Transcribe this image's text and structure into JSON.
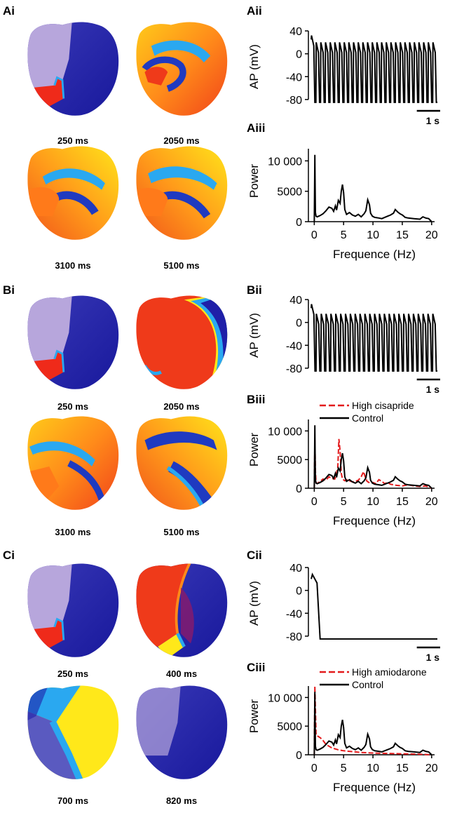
{
  "panels": {
    "A": {
      "labels": {
        "maps": "Ai",
        "ap": "Aii",
        "power": "Aiii"
      },
      "times": [
        "250 ms",
        "2050 ms",
        "3100 ms",
        "5100 ms"
      ]
    },
    "B": {
      "labels": {
        "maps": "Bi",
        "ap": "Bii",
        "power": "Biii"
      },
      "times": [
        "250 ms",
        "2050 ms",
        "3100 ms",
        "5100 ms"
      ]
    },
    "C": {
      "labels": {
        "maps": "Ci",
        "ap": "Cii",
        "power": "Ciii"
      },
      "times": [
        "250 ms",
        "400 ms",
        "700 ms",
        "820 ms"
      ]
    }
  },
  "colors": {
    "map_blue": "#1f1fa8",
    "map_red": "#ef2a1a",
    "map_orange": "#ff8a1a",
    "map_yellow": "#ffe81a",
    "map_cyan": "#2aa8f0",
    "map_purple": "#b7a6dc",
    "control": "#000000",
    "drug": "#e31a1c"
  },
  "chart_data": [
    {
      "id": "Aii",
      "type": "line",
      "ylabel": "AP (mV)",
      "yticks": [
        40,
        0,
        -40,
        -80
      ],
      "ylim": [
        -90,
        45
      ],
      "scalebar": "1 s",
      "series": [
        {
          "kind": "ap_train",
          "beats": 27,
          "peak": 20,
          "first_peak": 32,
          "rest": -85,
          "duration_s": 5.4
        }
      ]
    },
    {
      "id": "Aiii",
      "type": "line",
      "ylabel": "Power",
      "xlabel": "Frequence (Hz)",
      "xticks": [
        0,
        5,
        10,
        15,
        20
      ],
      "yticks": [
        0,
        5000,
        "10 000"
      ],
      "xlim": [
        -1,
        20.5
      ],
      "ylim": [
        0,
        12000
      ],
      "legend": [],
      "series": [
        {
          "style": "control",
          "x": [
            0,
            0.1,
            0.15,
            0.2,
            0.3,
            0.5,
            1,
            1.5,
            2,
            2.5,
            3,
            3.3,
            3.6,
            3.8,
            4.1,
            4.4,
            4.6,
            4.8,
            5.0,
            5.2,
            5.5,
            6,
            6.5,
            7,
            7.5,
            8,
            8.5,
            8.8,
            9.1,
            9.4,
            9.6,
            9.9,
            10.3,
            11,
            11.5,
            12,
            12.5,
            13,
            13.5,
            13.8,
            14.2,
            14.6,
            15,
            15.5,
            16,
            17,
            18,
            18.5,
            19,
            19.5,
            20
          ],
          "y": [
            0,
            11000,
            6000,
            1500,
            900,
            800,
            1000,
            1300,
            1800,
            2400,
            2200,
            1700,
            2600,
            1900,
            3500,
            3000,
            5000,
            6100,
            4800,
            2000,
            1200,
            1500,
            1100,
            900,
            1200,
            800,
            1300,
            1800,
            3600,
            2800,
            1400,
            900,
            700,
            600,
            500,
            700,
            900,
            1100,
            1400,
            2000,
            1600,
            1300,
            1100,
            700,
            600,
            500,
            400,
            800,
            600,
            500,
            0
          ]
        }
      ]
    },
    {
      "id": "Bii",
      "type": "line",
      "ylabel": "AP (mV)",
      "yticks": [
        40,
        0,
        -40,
        -80
      ],
      "ylim": [
        -90,
        45
      ],
      "scalebar": "1 s",
      "series": [
        {
          "kind": "ap_train",
          "beats": 26,
          "peak": 15,
          "first_peak": 32,
          "rest": -85,
          "duration_s": 5.4
        }
      ]
    },
    {
      "id": "Biii",
      "type": "line",
      "ylabel": "Power",
      "xlabel": "Frequence (Hz)",
      "xticks": [
        0,
        5,
        10,
        15,
        20
      ],
      "yticks": [
        0,
        5000,
        "10 000"
      ],
      "xlim": [
        -1,
        20.5
      ],
      "ylim": [
        0,
        12000
      ],
      "legend": [
        "High cisapride",
        "Control"
      ],
      "series": [
        {
          "name": "High cisapride",
          "style": "drug",
          "x": [
            0,
            0.1,
            0.2,
            0.3,
            0.5,
            1,
            1.5,
            2,
            2.5,
            3,
            3.5,
            4,
            4.2,
            4.4,
            4.6,
            4.8,
            5.2,
            5.6,
            6,
            6.5,
            7,
            7.5,
            8,
            8.4,
            8.7,
            9,
            9.5,
            10,
            10.5,
            11,
            11.5,
            12,
            12.5,
            13,
            14,
            15,
            16,
            17,
            18,
            19,
            20
          ],
          "y": [
            0,
            8500,
            3000,
            1000,
            800,
            1200,
            1600,
            1400,
            2000,
            1700,
            1600,
            3500,
            8600,
            6500,
            2600,
            1600,
            1300,
            1500,
            1300,
            1100,
            1200,
            1400,
            2000,
            2900,
            1900,
            1200,
            900,
            1000,
            800,
            1500,
            1200,
            800,
            1000,
            700,
            500,
            400,
            600,
            400,
            300,
            400,
            0
          ]
        },
        {
          "name": "Control",
          "style": "control",
          "x": [
            0,
            0.1,
            0.15,
            0.2,
            0.3,
            0.5,
            1,
            1.5,
            2,
            2.5,
            3,
            3.3,
            3.6,
            3.8,
            4.1,
            4.4,
            4.6,
            4.8,
            5.0,
            5.2,
            5.5,
            6,
            6.5,
            7,
            7.5,
            8,
            8.5,
            8.8,
            9.1,
            9.4,
            9.6,
            9.9,
            10.3,
            11,
            11.5,
            12,
            12.5,
            13,
            13.5,
            13.8,
            14.2,
            14.6,
            15,
            15.5,
            16,
            17,
            18,
            18.5,
            19,
            19.5,
            20
          ],
          "y": [
            0,
            11000,
            6000,
            1500,
            900,
            800,
            1000,
            1300,
            1800,
            2400,
            2200,
            1700,
            2600,
            1900,
            3500,
            3000,
            5000,
            6100,
            4800,
            2000,
            1200,
            1500,
            1100,
            900,
            1200,
            800,
            1300,
            1800,
            3600,
            2800,
            1400,
            900,
            700,
            600,
            500,
            700,
            900,
            1100,
            1400,
            2000,
            1600,
            1300,
            1100,
            700,
            600,
            500,
            400,
            800,
            600,
            500,
            0
          ]
        }
      ]
    },
    {
      "id": "Cii",
      "type": "line",
      "ylabel": "AP (mV)",
      "yticks": [
        40,
        0,
        -40,
        -80
      ],
      "ylim": [
        -90,
        45
      ],
      "scalebar": "1 s",
      "series": [
        {
          "kind": "single_ap",
          "peak": 28,
          "rest": -85,
          "duration_s": 5.4
        }
      ]
    },
    {
      "id": "Ciii",
      "type": "line",
      "ylabel": "Power",
      "xlabel": "Frequence (Hz)",
      "xticks": [
        0,
        5,
        10,
        15,
        20
      ],
      "yticks": [
        0,
        5000,
        "10 000"
      ],
      "xlim": [
        -1,
        20.5
      ],
      "ylim": [
        0,
        12000
      ],
      "legend": [
        "High amiodarone",
        "Control"
      ],
      "series": [
        {
          "name": "High amiodarone",
          "style": "drug",
          "x": [
            0,
            0.1,
            0.2,
            0.3,
            0.5,
            1,
            1.5,
            2,
            3,
            4,
            5,
            6,
            7,
            8,
            9,
            10,
            12,
            14,
            16,
            18,
            20
          ],
          "y": [
            0,
            12000,
            8000,
            3500,
            3300,
            3000,
            2500,
            1800,
            1200,
            900,
            700,
            600,
            500,
            400,
            350,
            300,
            250,
            200,
            150,
            100,
            0
          ]
        },
        {
          "name": "Control",
          "style": "control",
          "x": [
            0,
            0.1,
            0.15,
            0.2,
            0.3,
            0.5,
            1,
            1.5,
            2,
            2.5,
            3,
            3.3,
            3.6,
            3.8,
            4.1,
            4.4,
            4.6,
            4.8,
            5.0,
            5.2,
            5.5,
            6,
            6.5,
            7,
            7.5,
            8,
            8.5,
            8.8,
            9.1,
            9.4,
            9.6,
            9.9,
            10.3,
            11,
            11.5,
            12,
            12.5,
            13,
            13.5,
            13.8,
            14.2,
            14.6,
            15,
            15.5,
            16,
            17,
            18,
            18.5,
            19,
            19.5,
            20
          ],
          "y": [
            0,
            11000,
            6000,
            1500,
            900,
            800,
            1000,
            1300,
            1800,
            2400,
            2200,
            1700,
            2600,
            1900,
            3500,
            3000,
            5000,
            6100,
            4800,
            2000,
            1200,
            1500,
            1100,
            900,
            1200,
            800,
            1300,
            1800,
            3600,
            2800,
            1400,
            900,
            700,
            600,
            500,
            700,
            900,
            1100,
            1400,
            2000,
            1600,
            1300,
            1100,
            700,
            600,
            500,
            400,
            800,
            600,
            500,
            0
          ]
        }
      ]
    }
  ]
}
